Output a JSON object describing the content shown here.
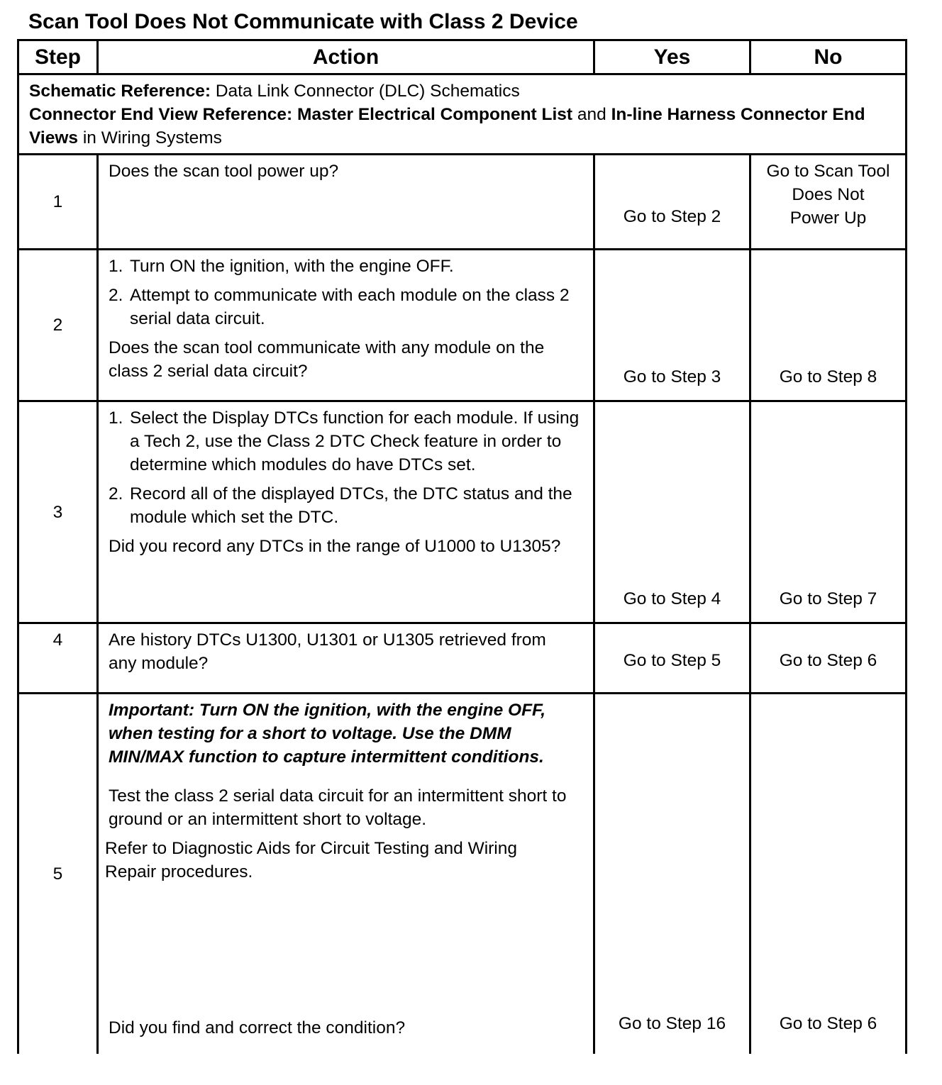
{
  "title": "Scan Tool Does Not Communicate with Class 2 Device",
  "headers": {
    "step": "Step",
    "action": "Action",
    "yes": "Yes",
    "no": "No"
  },
  "reference": {
    "schematic_label": "Schematic Reference:",
    "schematic_value": "Data Link Connector (DLC) Schematics",
    "connector_label": "Connector End View Reference:",
    "connector_bold1": "Master Electrical Component List",
    "connector_and": "and",
    "connector_bold2": "In-line Harness Connector End Views",
    "connector_tail": "in Wiring Systems"
  },
  "rows": [
    {
      "step": "1",
      "question": "Does the scan tool power up?",
      "yes": "Go to Step 2",
      "no": "Go to Scan Tool Does Not Power Up"
    },
    {
      "step": "2",
      "items": [
        "Turn ON the ignition, with the engine OFF.",
        "Attempt to communicate with each module on the class 2 serial data circuit."
      ],
      "question": "Does the scan tool communicate with any module on the class 2 serial data circuit?",
      "yes": "Go to Step 3",
      "no": "Go to Step 8"
    },
    {
      "step": "3",
      "items": [
        "Select the Display DTCs function for each module. If using a Tech 2, use the Class 2 DTC Check feature in order to determine which modules do have DTCs set.",
        "Record all of the displayed DTCs, the DTC status and the module which set the DTC."
      ],
      "question": "Did you record any DTCs in the range of U1000 to U1305?",
      "yes": "Go to Step 4",
      "no": "Go to Step 7"
    },
    {
      "step": "4",
      "question": "Are history DTCs U1300, U1301 or U1305 retrieved from any module?",
      "yes": "Go to Step 5",
      "no": "Go to Step 6"
    },
    {
      "step": "5",
      "important": "Important: Turn ON the ignition, with the engine OFF, when testing for a short to voltage. Use the DMM MIN/MAX function to capture intermittent conditions.",
      "text1": "Test the class 2 serial data circuit for an intermittent short to ground or an intermittent short to voltage.",
      "text2": "Refer to Diagnostic Aids for Circuit Testing and Wiring Repair procedures.",
      "question": "Did you find and correct the condition?",
      "yes": "Go to Step 16",
      "no": "Go to Step 6"
    }
  ]
}
